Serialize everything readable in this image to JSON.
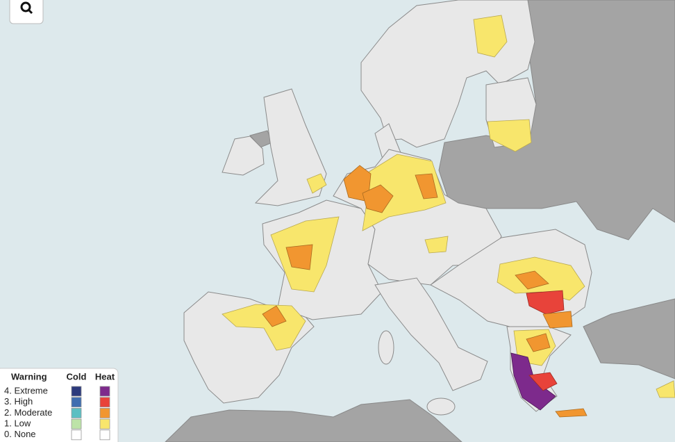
{
  "legend": {
    "title": "Warning",
    "columns": [
      "Cold",
      "Heat"
    ],
    "levels": [
      {
        "label": "4. Extreme",
        "cold_color": "#2c3a7c",
        "heat_color": "#7d2a8c"
      },
      {
        "label": "3. High",
        "cold_color": "#3f6db0",
        "heat_color": "#e8433a"
      },
      {
        "label": "2. Moderate",
        "cold_color": "#5cbfc2",
        "heat_color": "#f19630"
      },
      {
        "label": "1. Low",
        "cold_color": "#bde3a8",
        "heat_color": "#f8e66c"
      },
      {
        "label": "0. None",
        "cold_color": "#ffffff",
        "heat_color": "#ffffff"
      }
    ]
  }
}
